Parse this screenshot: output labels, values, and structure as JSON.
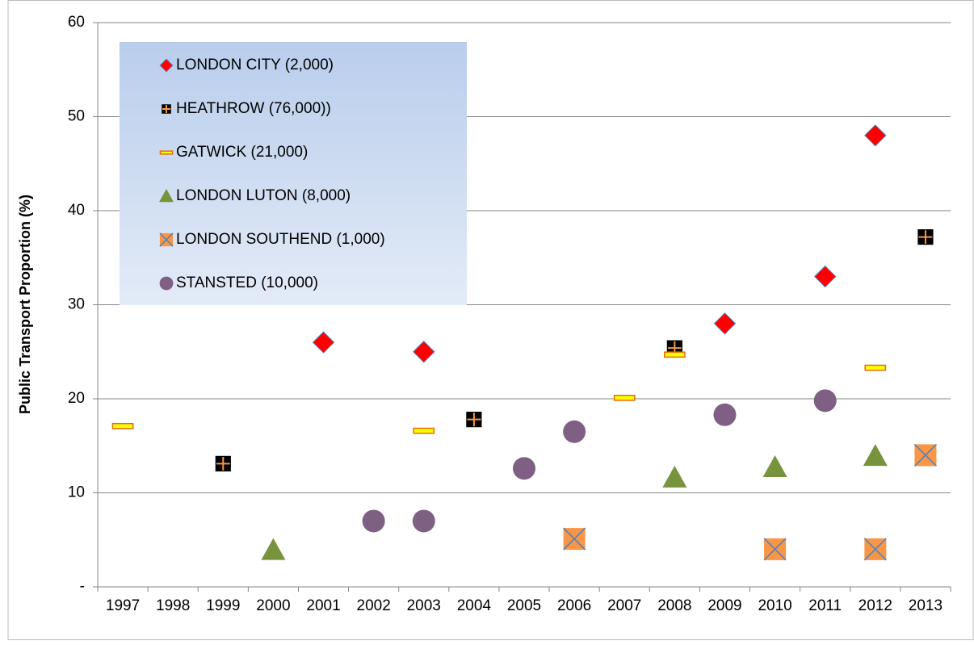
{
  "chart_data": {
    "type": "scatter",
    "y_label": "Public Transport Proportion (%)",
    "categories": [
      "1997",
      "1998",
      "1999",
      "2000",
      "2001",
      "2002",
      "2003",
      "2004",
      "2005",
      "2006",
      "2007",
      "2008",
      "2009",
      "2010",
      "2011",
      "2012",
      "2013"
    ],
    "ylim": [
      0,
      60
    ],
    "yticks": [
      {
        "value": 0,
        "label": "-"
      },
      10,
      20,
      30,
      40,
      50,
      60
    ],
    "grid": true,
    "legend": "upper-left",
    "series": [
      {
        "name": "LONDON CITY (2,000)",
        "color": "#ff0000",
        "marker": "diamond",
        "values": [
          null,
          null,
          null,
          null,
          26,
          null,
          25,
          null,
          null,
          null,
          null,
          null,
          28,
          null,
          33,
          48,
          null
        ]
      },
      {
        "name": "HEATHROW (76,000))",
        "color": "#000000",
        "marker": "plus-square",
        "values": [
          null,
          null,
          13.1,
          null,
          null,
          null,
          null,
          17.8,
          null,
          null,
          null,
          25.4,
          null,
          null,
          null,
          null,
          37.2
        ]
      },
      {
        "name": "GATWICK (21,000)",
        "color": "#ffff00",
        "marker": "dash",
        "values": [
          17.1,
          null,
          null,
          null,
          null,
          null,
          16.6,
          null,
          null,
          null,
          20.1,
          24.7,
          null,
          null,
          null,
          23.3,
          null
        ]
      },
      {
        "name": "LONDON LUTON (8,000)",
        "color": "#77933c",
        "marker": "triangle",
        "values": [
          null,
          null,
          null,
          3.9,
          null,
          null,
          null,
          null,
          null,
          null,
          null,
          11.6,
          null,
          12.7,
          null,
          13.9,
          null
        ]
      },
      {
        "name": "LONDON SOUTHEND (1,000)",
        "color": "#f79646",
        "marker": "x-square",
        "values": [
          null,
          null,
          null,
          null,
          null,
          null,
          null,
          null,
          null,
          5.1,
          null,
          null,
          null,
          4,
          null,
          4,
          14
        ]
      },
      {
        "name": "STANSTED (10,000)",
        "color": "#7f6084",
        "marker": "circle",
        "values": [
          null,
          null,
          null,
          null,
          null,
          7,
          7,
          null,
          12.6,
          16.5,
          null,
          null,
          18.3,
          null,
          19.8,
          null,
          null
        ]
      }
    ]
  }
}
